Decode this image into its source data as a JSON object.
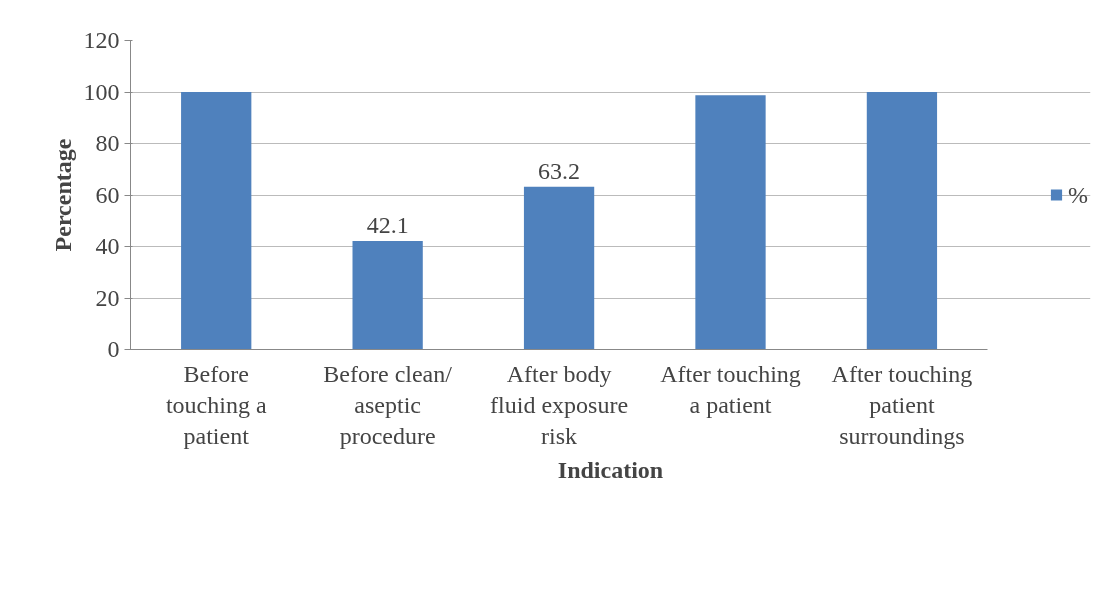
{
  "chart_data": {
    "type": "bar",
    "xlabel": "Indication",
    "ylabel": "Percentage",
    "categories": [
      "Before touching a patient",
      "Before clean/ aseptic procedure",
      "After body fluid exposure risk",
      "After touching a patient",
      "After touching patient surroundings"
    ],
    "series": [
      {
        "name": "%",
        "color": "#4f81bd",
        "values": [
          100,
          42.1,
          63.2,
          98.7,
          100
        ],
        "value_labels": [
          null,
          "42.1",
          "63.2",
          null,
          null
        ]
      }
    ],
    "ylim": [
      0,
      120
    ],
    "yticks": [
      0,
      20,
      40,
      60,
      80,
      100,
      120
    ],
    "grid": "y",
    "legend": "right"
  }
}
